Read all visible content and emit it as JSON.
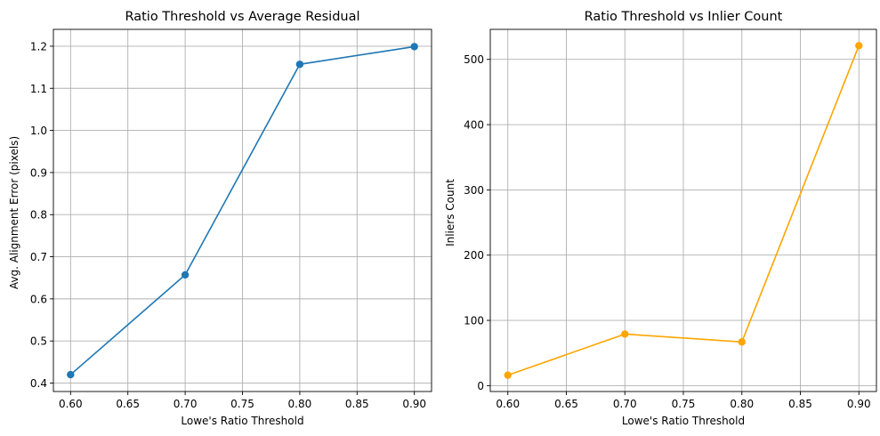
{
  "chart_data": [
    {
      "type": "line",
      "title": "Ratio Threshold vs Average Residual",
      "xlabel": "Lowe's Ratio Threshold",
      "ylabel": "Avg. Alignment Error (pixels)",
      "x": [
        0.6,
        0.7,
        0.8,
        0.9
      ],
      "series": [
        {
          "values": [
            0.42,
            0.657,
            1.157,
            1.199
          ],
          "color": "#1f77b4",
          "marker": "circle"
        }
      ],
      "xlim": [
        0.585,
        0.915
      ],
      "ylim": [
        0.38,
        1.24
      ],
      "xticks": [
        "0.60",
        "0.65",
        "0.70",
        "0.75",
        "0.80",
        "0.85",
        "0.90"
      ],
      "yticks": [
        "0.4",
        "0.5",
        "0.6",
        "0.7",
        "0.8",
        "0.9",
        "1.0",
        "1.1",
        "1.2"
      ],
      "grid": true
    },
    {
      "type": "line",
      "title": "Ratio Threshold vs Inlier Count",
      "xlabel": "Lowe's Ratio Threshold",
      "ylabel": "Inliers Count",
      "x": [
        0.6,
        0.7,
        0.8,
        0.9
      ],
      "series": [
        {
          "values": [
            16,
            79,
            67,
            521
          ],
          "color": "#ffa500",
          "marker": "circle"
        }
      ],
      "xlim": [
        0.585,
        0.915
      ],
      "ylim": [
        -9,
        546
      ],
      "xticks": [
        "0.60",
        "0.65",
        "0.70",
        "0.75",
        "0.80",
        "0.85",
        "0.90"
      ],
      "yticks": [
        "0",
        "100",
        "200",
        "300",
        "400",
        "500"
      ],
      "grid": true
    }
  ]
}
